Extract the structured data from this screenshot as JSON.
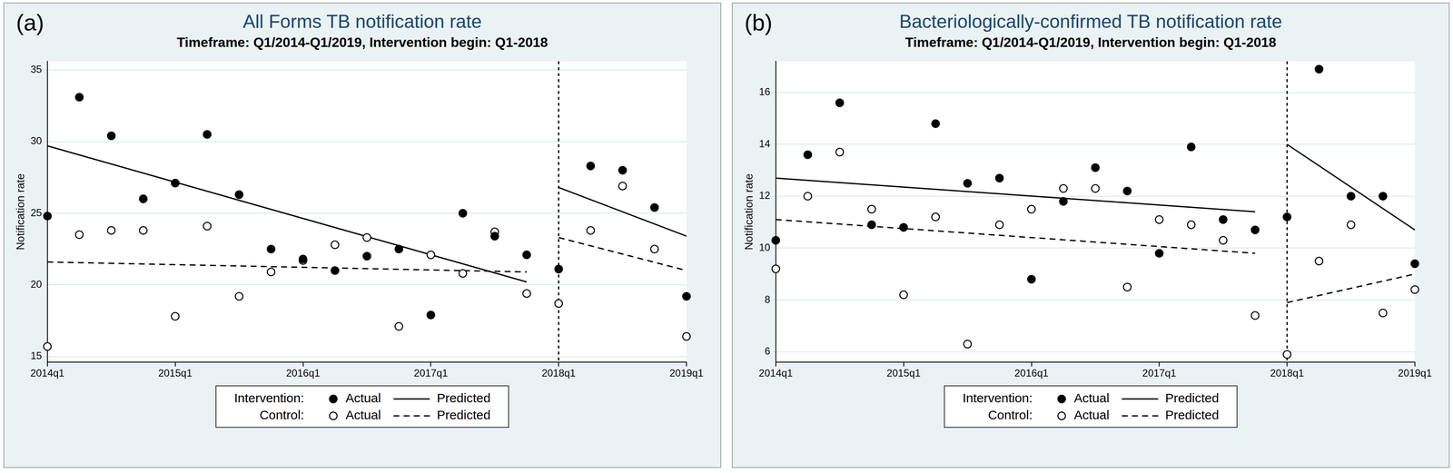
{
  "chart_data": [
    {
      "type": "scatter",
      "panel_label": "(a)",
      "title": "All Forms TB notification rate",
      "subtitle": "Timeframe: Q1/2014-Q1/2019, Intervention begin: Q1-2018",
      "y_label": "Notification rate",
      "categories": [
        "2014q1",
        null,
        null,
        null,
        "2015q1",
        null,
        null,
        null,
        "2016q1",
        null,
        null,
        null,
        "2017q1",
        null,
        null,
        null,
        "2018q1",
        null,
        null,
        null,
        "2019q1"
      ],
      "vline": "2018q1",
      "ylim": [
        14.6,
        35.6
      ],
      "yticks": [
        15,
        20,
        25,
        30,
        35
      ],
      "grid": true,
      "legend": "bottom",
      "series": [
        {
          "group": "Intervention:",
          "name": "Actual",
          "type": "scatter",
          "marker": "filled_circle",
          "color": "#000000",
          "values": [
            24.8,
            33.1,
            30.4,
            26.0,
            27.1,
            30.5,
            26.3,
            22.5,
            21.8,
            21.0,
            22.0,
            22.5,
            17.9,
            25.0,
            23.4,
            22.1,
            21.1,
            28.3,
            28.0,
            25.4,
            19.2
          ]
        },
        {
          "group": "Intervention:",
          "name": "Predicted",
          "type": "line",
          "line_style": "solid",
          "color": "#000000",
          "values": [
            29.7,
            null,
            null,
            null,
            null,
            null,
            null,
            null,
            null,
            null,
            null,
            null,
            null,
            null,
            null,
            20.2,
            null,
            null,
            null,
            null,
            null
          ]
        },
        {
          "group": "Intervention:",
          "name": "Predicted",
          "type": "line",
          "line_style": "solid",
          "color": "#000000",
          "values": [
            null,
            null,
            null,
            null,
            null,
            null,
            null,
            null,
            null,
            null,
            null,
            null,
            null,
            null,
            null,
            null,
            26.8,
            null,
            null,
            null,
            23.4
          ]
        },
        {
          "group": "Control:",
          "name": "Actual",
          "type": "scatter",
          "marker": "hollow_circle",
          "color": "#000000",
          "values": [
            15.7,
            23.5,
            23.8,
            23.8,
            17.8,
            24.1,
            19.2,
            20.9,
            21.7,
            22.8,
            23.3,
            17.1,
            22.1,
            20.8,
            23.7,
            19.4,
            18.7,
            23.8,
            26.9,
            22.5,
            16.4
          ]
        },
        {
          "group": "Control:",
          "name": "Predicted",
          "type": "line",
          "line_style": "dashed",
          "color": "#000000",
          "values": [
            21.6,
            null,
            null,
            null,
            null,
            null,
            null,
            null,
            null,
            null,
            null,
            null,
            null,
            null,
            null,
            20.9,
            null,
            null,
            null,
            null,
            null
          ]
        },
        {
          "group": "Control:",
          "name": "Predicted",
          "type": "line",
          "line_style": "dashed",
          "color": "#000000",
          "values": [
            null,
            null,
            null,
            null,
            null,
            null,
            null,
            null,
            null,
            null,
            null,
            null,
            null,
            null,
            null,
            null,
            23.3,
            null,
            null,
            null,
            21.0
          ]
        }
      ]
    },
    {
      "type": "scatter",
      "panel_label": "(b)",
      "title": "Bacteriologically-confirmed TB notification rate",
      "subtitle": "Timeframe: Q1/2014-Q1/2019, Intervention begin: Q1-2018",
      "y_label": "Notification rate",
      "categories": [
        "2014q1",
        null,
        null,
        null,
        "2015q1",
        null,
        null,
        null,
        "2016q1",
        null,
        null,
        null,
        "2017q1",
        null,
        null,
        null,
        "2018q1",
        null,
        null,
        null,
        "2019q1"
      ],
      "vline": "2018q1",
      "ylim": [
        5.6,
        17.2
      ],
      "yticks": [
        6,
        8,
        10,
        12,
        14,
        16
      ],
      "grid": true,
      "legend": "bottom",
      "series": [
        {
          "group": "Intervention:",
          "name": "Actual",
          "type": "scatter",
          "marker": "filled_circle",
          "color": "#000000",
          "values": [
            10.3,
            13.6,
            15.6,
            10.9,
            10.8,
            14.8,
            12.5,
            12.7,
            8.8,
            11.8,
            13.1,
            12.2,
            9.8,
            13.9,
            11.1,
            10.7,
            11.2,
            16.9,
            12.0,
            12.0,
            9.4
          ]
        },
        {
          "group": "Intervention:",
          "name": "Predicted",
          "type": "line",
          "line_style": "solid",
          "color": "#000000",
          "values": [
            12.7,
            null,
            null,
            null,
            null,
            null,
            null,
            null,
            null,
            null,
            null,
            null,
            null,
            null,
            null,
            11.4,
            null,
            null,
            null,
            null,
            null
          ]
        },
        {
          "group": "Intervention:",
          "name": "Predicted",
          "type": "line",
          "line_style": "solid",
          "color": "#000000",
          "values": [
            null,
            null,
            null,
            null,
            null,
            null,
            null,
            null,
            null,
            null,
            null,
            null,
            null,
            null,
            null,
            null,
            14.0,
            null,
            null,
            null,
            10.7
          ]
        },
        {
          "group": "Control:",
          "name": "Actual",
          "type": "scatter",
          "marker": "hollow_circle",
          "color": "#000000",
          "values": [
            9.2,
            12.0,
            13.7,
            11.5,
            8.2,
            11.2,
            6.3,
            10.9,
            11.5,
            12.3,
            12.3,
            8.5,
            11.1,
            10.9,
            10.3,
            7.4,
            5.9,
            9.5,
            10.9,
            7.5,
            8.4
          ]
        },
        {
          "group": "Control:",
          "name": "Predicted",
          "type": "line",
          "line_style": "dashed",
          "color": "#000000",
          "values": [
            11.1,
            null,
            null,
            null,
            null,
            null,
            null,
            null,
            null,
            null,
            null,
            null,
            null,
            null,
            null,
            9.8,
            null,
            null,
            null,
            null,
            null
          ]
        },
        {
          "group": "Control:",
          "name": "Predicted",
          "type": "line",
          "line_style": "dashed",
          "color": "#000000",
          "values": [
            null,
            null,
            null,
            null,
            null,
            null,
            null,
            null,
            null,
            null,
            null,
            null,
            null,
            null,
            null,
            null,
            7.9,
            null,
            null,
            null,
            9.0
          ]
        }
      ]
    }
  ]
}
